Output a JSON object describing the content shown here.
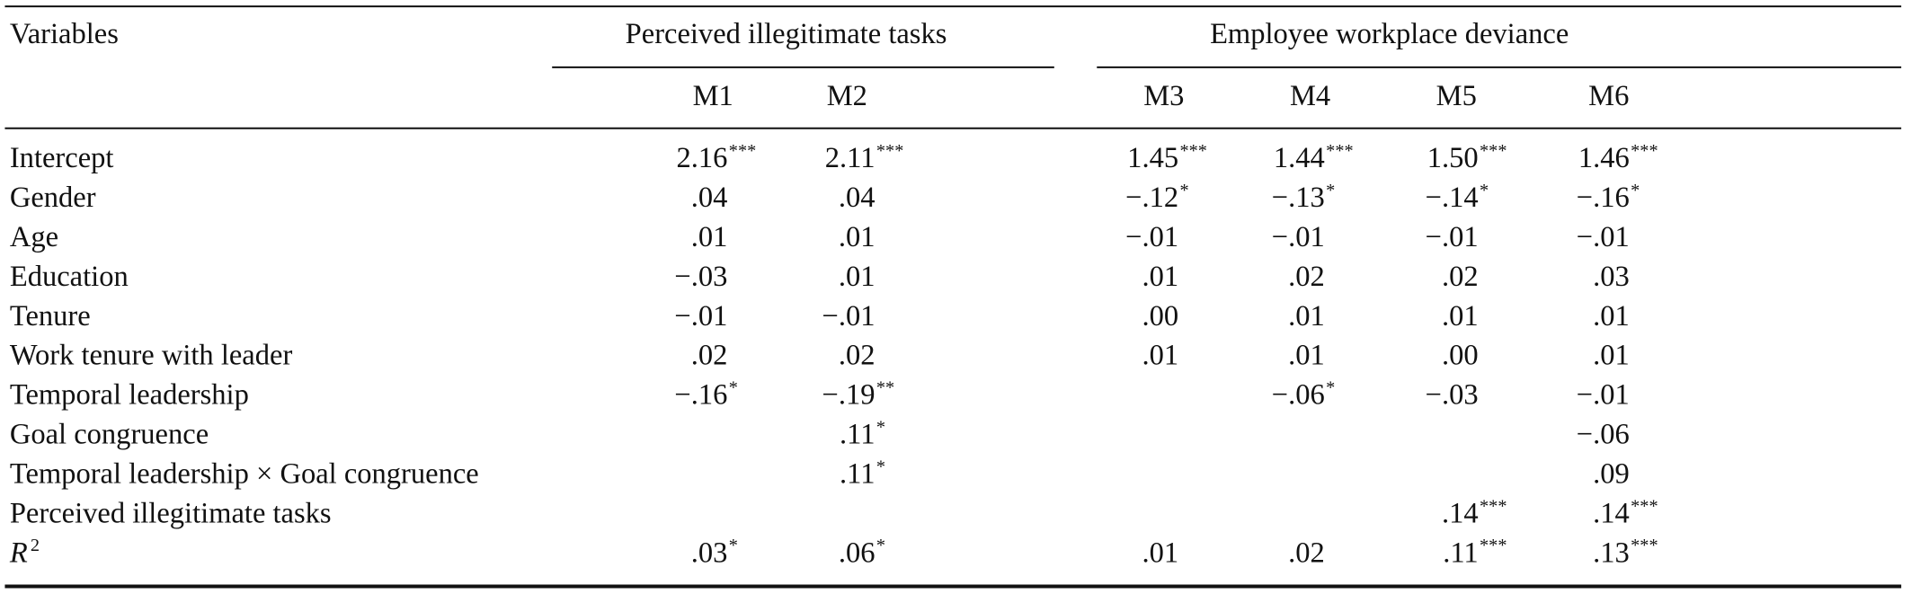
{
  "table": {
    "header": {
      "variables": "Variables",
      "groups": [
        "Perceived illegitimate tasks",
        "Employee workplace deviance"
      ],
      "models": [
        "M1",
        "M2",
        "M3",
        "M4",
        "M5",
        "M6"
      ]
    },
    "rows": [
      {
        "label": "Intercept",
        "cells": [
          {
            "v": "2.16",
            "sig": "***"
          },
          {
            "v": "2.11",
            "sig": "***"
          },
          {
            "v": "1.45",
            "sig": "***"
          },
          {
            "v": "1.44",
            "sig": "***"
          },
          {
            "v": "1.50",
            "sig": "***"
          },
          {
            "v": "1.46",
            "sig": "***"
          }
        ]
      },
      {
        "label": "Gender",
        "cells": [
          {
            "v": ".04"
          },
          {
            "v": ".04"
          },
          {
            "v": "−.12",
            "sig": "*"
          },
          {
            "v": "−.13",
            "sig": "*"
          },
          {
            "v": "−.14",
            "sig": "*"
          },
          {
            "v": "−.16",
            "sig": "*"
          }
        ]
      },
      {
        "label": "Age",
        "cells": [
          {
            "v": ".01"
          },
          {
            "v": ".01"
          },
          {
            "v": "−.01"
          },
          {
            "v": "−.01"
          },
          {
            "v": "−.01"
          },
          {
            "v": "−.01"
          }
        ]
      },
      {
        "label": "Education",
        "cells": [
          {
            "v": "−.03"
          },
          {
            "v": ".01"
          },
          {
            "v": ".01"
          },
          {
            "v": ".02"
          },
          {
            "v": ".02"
          },
          {
            "v": ".03"
          }
        ]
      },
      {
        "label": "Tenure",
        "cells": [
          {
            "v": "−.01"
          },
          {
            "v": "−.01"
          },
          {
            "v": ".00"
          },
          {
            "v": ".01"
          },
          {
            "v": ".01"
          },
          {
            "v": ".01"
          }
        ]
      },
      {
        "label": "Work tenure with leader",
        "cells": [
          {
            "v": ".02"
          },
          {
            "v": ".02"
          },
          {
            "v": ".01"
          },
          {
            "v": ".01"
          },
          {
            "v": ".00"
          },
          {
            "v": ".01"
          }
        ]
      },
      {
        "label": "Temporal leadership",
        "cells": [
          {
            "v": "−.16",
            "sig": "*"
          },
          {
            "v": "−.19",
            "sig": "**"
          },
          null,
          {
            "v": "−.06",
            "sig": "*"
          },
          {
            "v": "−.03"
          },
          {
            "v": "−.01"
          }
        ]
      },
      {
        "label": "Goal congruence",
        "cells": [
          null,
          {
            "v": ".11",
            "sig": "*"
          },
          null,
          null,
          null,
          {
            "v": "−.06"
          }
        ]
      },
      {
        "label": "Temporal leadership × Goal congruence",
        "cells": [
          null,
          {
            "v": ".11",
            "sig": "*"
          },
          null,
          null,
          null,
          {
            "v": ".09"
          }
        ]
      },
      {
        "label": "Perceived illegitimate tasks",
        "cells": [
          null,
          null,
          null,
          null,
          {
            "v": ".14",
            "sig": "***"
          },
          {
            "v": ".14",
            "sig": "***"
          }
        ]
      },
      {
        "label": "R",
        "label_sup": "2",
        "cells": [
          {
            "v": ".03",
            "sig": "*"
          },
          {
            "v": ".06",
            "sig": "*"
          },
          {
            "v": ".01"
          },
          {
            "v": ".02"
          },
          {
            "v": ".11",
            "sig": "***"
          },
          {
            "v": ".13",
            "sig": "***"
          }
        ]
      }
    ]
  }
}
